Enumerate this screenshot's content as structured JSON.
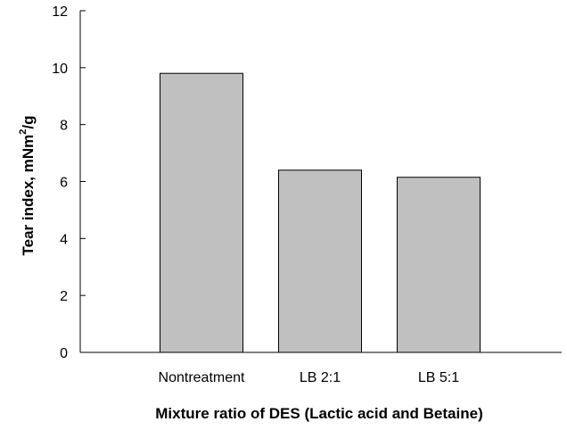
{
  "chart_data": {
    "type": "bar",
    "title": "",
    "xlabel": "Mixture ratio of DES (Lactic acid and Betaine)",
    "ylabel_main": "Tear index, mNm",
    "ylabel_sup": "2",
    "ylabel_tail": "/g",
    "categories": [
      "Nontreatment",
      "LB 2:1",
      "LB 5:1"
    ],
    "values": [
      9.8,
      6.4,
      6.15
    ],
    "ylim": [
      0,
      12
    ],
    "yticks": [
      0,
      2,
      4,
      6,
      8,
      10,
      12
    ],
    "grid": false,
    "colors": {
      "bar_fill": "#c0c0c0",
      "bar_stroke": "#000000",
      "axis": "#000000"
    }
  }
}
